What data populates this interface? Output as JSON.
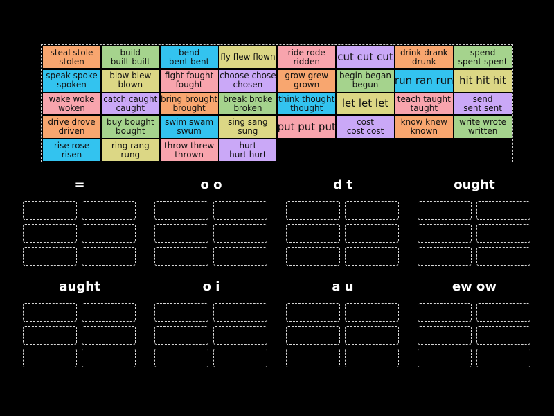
{
  "colors": {
    "orange": "#f8a66f",
    "green": "#a5d38d",
    "blue": "#33c3ef",
    "yellow": "#dcd785",
    "pink": "#f8a4ad",
    "purple": "#caa8f7",
    "background": "#000000"
  },
  "tiles": [
    {
      "lines": [
        "steal stole",
        "stolen"
      ],
      "color": "orange"
    },
    {
      "lines": [
        "build",
        "built built"
      ],
      "color": "green"
    },
    {
      "lines": [
        "bend",
        "bent bent"
      ],
      "color": "blue"
    },
    {
      "lines": [
        "fly flew flown"
      ],
      "color": "yellow"
    },
    {
      "lines": [
        "ride rode",
        "ridden"
      ],
      "color": "pink"
    },
    {
      "lines": [
        "cut cut cut"
      ],
      "color": "purple",
      "big": true
    },
    {
      "lines": [
        "drink drank",
        "drunk"
      ],
      "color": "orange"
    },
    {
      "lines": [
        "spend",
        "spent spent"
      ],
      "color": "green"
    },
    {
      "lines": [
        "speak spoke",
        "spoken"
      ],
      "color": "blue"
    },
    {
      "lines": [
        "blow blew",
        "blown"
      ],
      "color": "yellow"
    },
    {
      "lines": [
        "fight fought",
        "fought"
      ],
      "color": "pink"
    },
    {
      "lines": [
        "choose chose",
        "chosen"
      ],
      "color": "purple"
    },
    {
      "lines": [
        "grow grew",
        "grown"
      ],
      "color": "orange"
    },
    {
      "lines": [
        "begin began",
        "begun"
      ],
      "color": "green"
    },
    {
      "lines": [
        "run ran run"
      ],
      "color": "blue",
      "big": true
    },
    {
      "lines": [
        "hit hit hit"
      ],
      "color": "yellow",
      "big": true
    },
    {
      "lines": [
        "wake woke",
        "woken"
      ],
      "color": "pink"
    },
    {
      "lines": [
        "catch caught",
        "caught"
      ],
      "color": "purple"
    },
    {
      "lines": [
        "bring brought",
        "brought"
      ],
      "color": "orange"
    },
    {
      "lines": [
        "break broke",
        "broken"
      ],
      "color": "green"
    },
    {
      "lines": [
        "think thought",
        "thought"
      ],
      "color": "blue"
    },
    {
      "lines": [
        "let let let"
      ],
      "color": "yellow",
      "big": true
    },
    {
      "lines": [
        "teach taught",
        "taught"
      ],
      "color": "pink"
    },
    {
      "lines": [
        "send",
        "sent sent"
      ],
      "color": "purple"
    },
    {
      "lines": [
        "drive drove",
        "driven"
      ],
      "color": "orange"
    },
    {
      "lines": [
        "buy bought",
        "bought"
      ],
      "color": "green"
    },
    {
      "lines": [
        "swim swam",
        "swum"
      ],
      "color": "blue"
    },
    {
      "lines": [
        "sing sang",
        "sung"
      ],
      "color": "yellow"
    },
    {
      "lines": [
        "put put put"
      ],
      "color": "pink",
      "big": true
    },
    {
      "lines": [
        "cost",
        "cost cost"
      ],
      "color": "purple"
    },
    {
      "lines": [
        "know knew",
        "known"
      ],
      "color": "orange"
    },
    {
      "lines": [
        "write wrote",
        "written"
      ],
      "color": "green"
    },
    {
      "lines": [
        "rise rose",
        "risen"
      ],
      "color": "blue"
    },
    {
      "lines": [
        "ring rang",
        "rung"
      ],
      "color": "yellow"
    },
    {
      "lines": [
        "throw threw",
        "thrown"
      ],
      "color": "pink"
    },
    {
      "lines": [
        "hurt",
        "hurt hurt"
      ],
      "color": "purple"
    }
  ],
  "groups": [
    {
      "title": "="
    },
    {
      "title": "o o"
    },
    {
      "title": "d t"
    },
    {
      "title": "ought"
    },
    {
      "title": "aught"
    },
    {
      "title": "o i"
    },
    {
      "title": "a u"
    },
    {
      "title": "ew ow"
    }
  ]
}
